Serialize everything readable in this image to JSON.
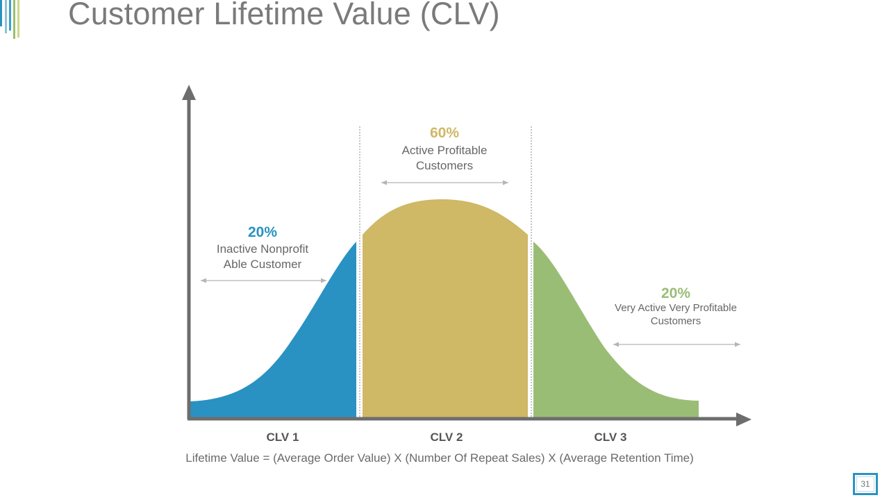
{
  "slide": {
    "title": "Customer Lifetime Value (CLV)",
    "page_number": "31",
    "formula": "Lifetime Value = (Average Order Value) X (Number Of Repeat Sales) X (Average Retention Time)"
  },
  "segments": [
    {
      "percent": "20%",
      "desc_line1": "Inactive Nonprofit",
      "desc_line2": "Able Customer",
      "color": "#2992c2"
    },
    {
      "percent": "60%",
      "desc_line1": "Active Profitable",
      "desc_line2": "Customers",
      "color": "#cfb866"
    },
    {
      "percent": "20%",
      "desc_line1": "Very Active Very Profitable",
      "desc_line2": "Customers",
      "color": "#9abd76"
    }
  ],
  "axis_labels": [
    "CLV 1",
    "CLV 2",
    "CLV 3"
  ],
  "colors": {
    "axis": "#6d6d6d",
    "title": "#7a7a7a",
    "accent_blue": "#2a92c2",
    "accent_green": "#9cbf6c"
  }
}
